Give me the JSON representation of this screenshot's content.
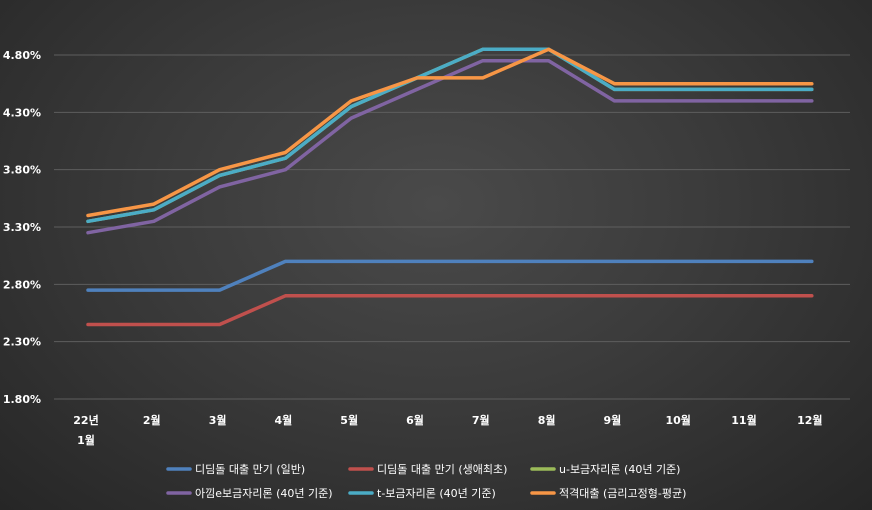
{
  "chart_data": {
    "type": "line",
    "title": "",
    "xlabel": "",
    "ylabel": "",
    "categories": [
      [
        "22년",
        "1월"
      ],
      [
        "2월"
      ],
      [
        "3월"
      ],
      [
        "4월"
      ],
      [
        "5월"
      ],
      [
        "6월"
      ],
      [
        "7월"
      ],
      [
        "8월"
      ],
      [
        "9월"
      ],
      [
        "10월"
      ],
      [
        "11월"
      ],
      [
        "12월"
      ]
    ],
    "y_ticks": [
      "1.80%",
      "2.30%",
      "2.80%",
      "3.30%",
      "3.80%",
      "4.30%",
      "4.80%"
    ],
    "ylim": [
      1.8,
      4.8
    ],
    "grid": true,
    "legend_position": "bottom",
    "series": [
      {
        "name": "디딤돌 대출 만기 (일반)",
        "color": "#4f81bd",
        "values": [
          2.75,
          2.75,
          2.75,
          3.0,
          3.0,
          3.0,
          3.0,
          3.0,
          3.0,
          3.0,
          3.0,
          3.0
        ]
      },
      {
        "name": "디딤돌 대출 만기 (생애최초)",
        "color": "#c0504d",
        "values": [
          2.45,
          2.45,
          2.45,
          2.7,
          2.7,
          2.7,
          2.7,
          2.7,
          2.7,
          2.7,
          2.7,
          2.7
        ]
      },
      {
        "name": "u-보금자리론 (40년 기준)",
        "color": "#9bbb59",
        "values": [
          3.35,
          3.45,
          3.75,
          3.9,
          4.35,
          4.6,
          4.85,
          4.85,
          4.5,
          4.5,
          4.5,
          4.5
        ]
      },
      {
        "name": "아낌e보금자리론 (40년 기준)",
        "color": "#8064a2",
        "values": [
          3.25,
          3.35,
          3.65,
          3.8,
          4.25,
          4.5,
          4.75,
          4.75,
          4.4,
          4.4,
          4.4,
          4.4
        ]
      },
      {
        "name": "t-보금자리론 (40년 기준)",
        "color": "#4bacc6",
        "values": [
          3.35,
          3.45,
          3.75,
          3.9,
          4.35,
          4.6,
          4.85,
          4.85,
          4.5,
          4.5,
          4.5,
          4.5
        ]
      },
      {
        "name": "적격대출 (금리고정형-평균)",
        "color": "#f79646",
        "values": [
          3.4,
          3.5,
          3.8,
          3.95,
          4.4,
          4.6,
          4.6,
          4.85,
          4.55,
          4.55,
          4.55,
          4.55
        ]
      }
    ]
  }
}
